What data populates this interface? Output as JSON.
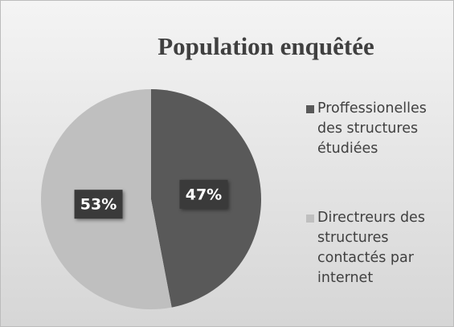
{
  "chart_data": {
    "type": "pie",
    "title": "Population enquêtée",
    "categories": [
      "Proffessionelles des structures étudiées",
      "Directreurs des structures contactés par internet"
    ],
    "values": [
      47,
      53
    ],
    "value_labels": [
      "47%",
      "53%"
    ],
    "colors": [
      "#595959",
      "#bfbfbf"
    ],
    "legend": "right"
  }
}
